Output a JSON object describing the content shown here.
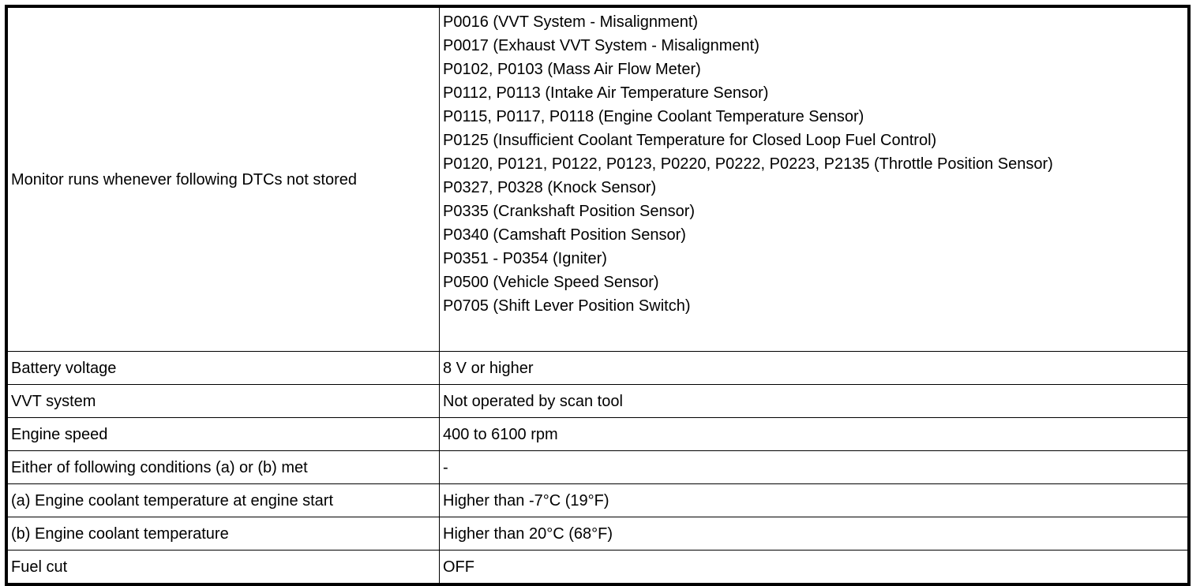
{
  "rows": [
    {
      "condition": "Monitor runs whenever following DTCs not stored",
      "value_lines": [
        "P0016 (VVT System - Misalignment)",
        "P0017 (Exhaust VVT System - Misalignment)",
        "P0102, P0103 (Mass Air Flow Meter)",
        "P0112, P0113 (Intake Air Temperature Sensor)",
        "P0115, P0117, P0118 (Engine Coolant Temperature Sensor)",
        "P0125 (Insufficient Coolant Temperature for Closed Loop Fuel Control)",
        "P0120, P0121, P0122, P0123, P0220, P0222, P0223, P2135 (Throttle Position Sensor)",
        "P0327, P0328 (Knock Sensor)",
        "P0335 (Crankshaft Position Sensor)",
        "P0340 (Camshaft Position Sensor)",
        "P0351 - P0354 (Igniter)",
        "P0500 (Vehicle Speed Sensor)",
        "P0705 (Shift Lever Position Switch)"
      ]
    },
    {
      "condition": "Battery voltage",
      "value": "8 V or higher"
    },
    {
      "condition": "VVT system",
      "value": "Not operated by scan tool"
    },
    {
      "condition": "Engine speed",
      "value": "400 to 6100 rpm"
    },
    {
      "condition": "Either of following conditions (a) or (b) met",
      "value": "-"
    },
    {
      "condition": "(a) Engine coolant temperature at engine start",
      "value": "Higher than -7°C (19°F)"
    },
    {
      "condition": "(b) Engine coolant temperature",
      "value": "Higher than 20°C (68°F)"
    },
    {
      "condition": "Fuel cut",
      "value": "OFF"
    }
  ]
}
